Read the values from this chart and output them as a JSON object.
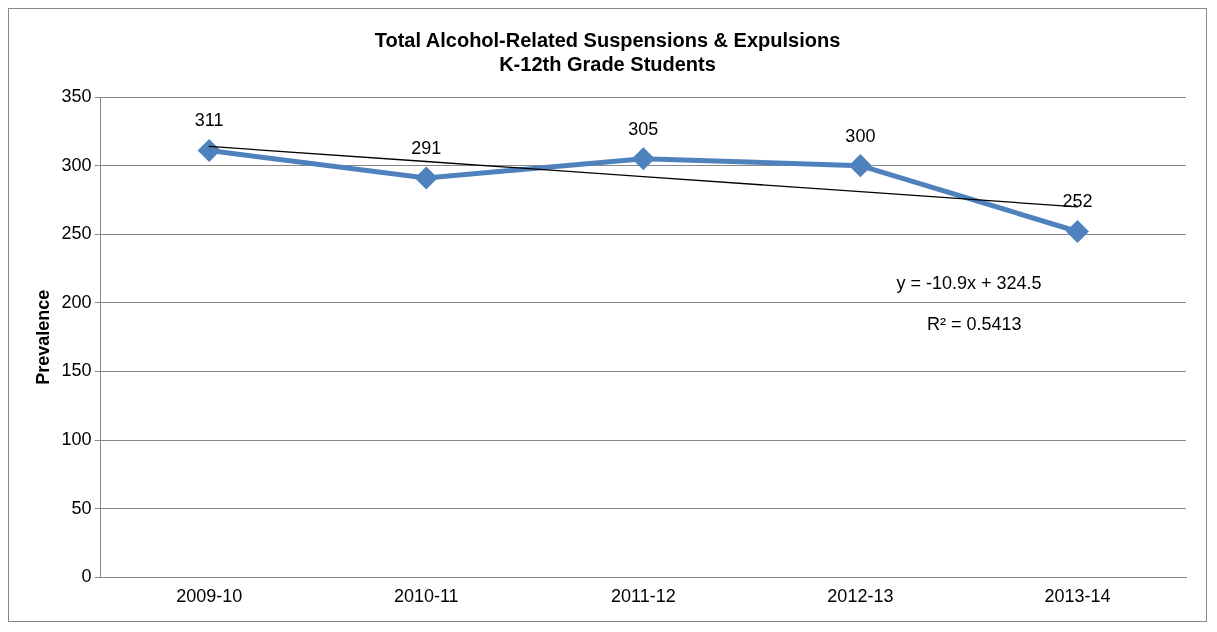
{
  "chart_data": {
    "type": "line",
    "title": "Total Alcohol-Related Suspensions & Expulsions",
    "subtitle": "K-12th Grade Students",
    "ylabel": "Prevalence",
    "categories": [
      "2009-10",
      "2010-11",
      "2011-12",
      "2012-13",
      "2013-14"
    ],
    "series": [
      {
        "color": "#4f81bd",
        "values": [
          311,
          291,
          305,
          300,
          252
        ],
        "value_labels": [
          "311",
          "291",
          "305",
          "300",
          "252"
        ],
        "marker": "diamond"
      },
      {
        "color": "#000000",
        "values": [
          314,
          303,
          292,
          281,
          270
        ],
        "marker": "none"
      }
    ],
    "annotations": [
      "y = -10.9x + 324.5",
      "R² = 0.5413"
    ],
    "ylim": [
      0,
      350
    ],
    "yticks": [
      0,
      50,
      100,
      150,
      200,
      250,
      300,
      350
    ],
    "grid": "y",
    "legend": false
  }
}
